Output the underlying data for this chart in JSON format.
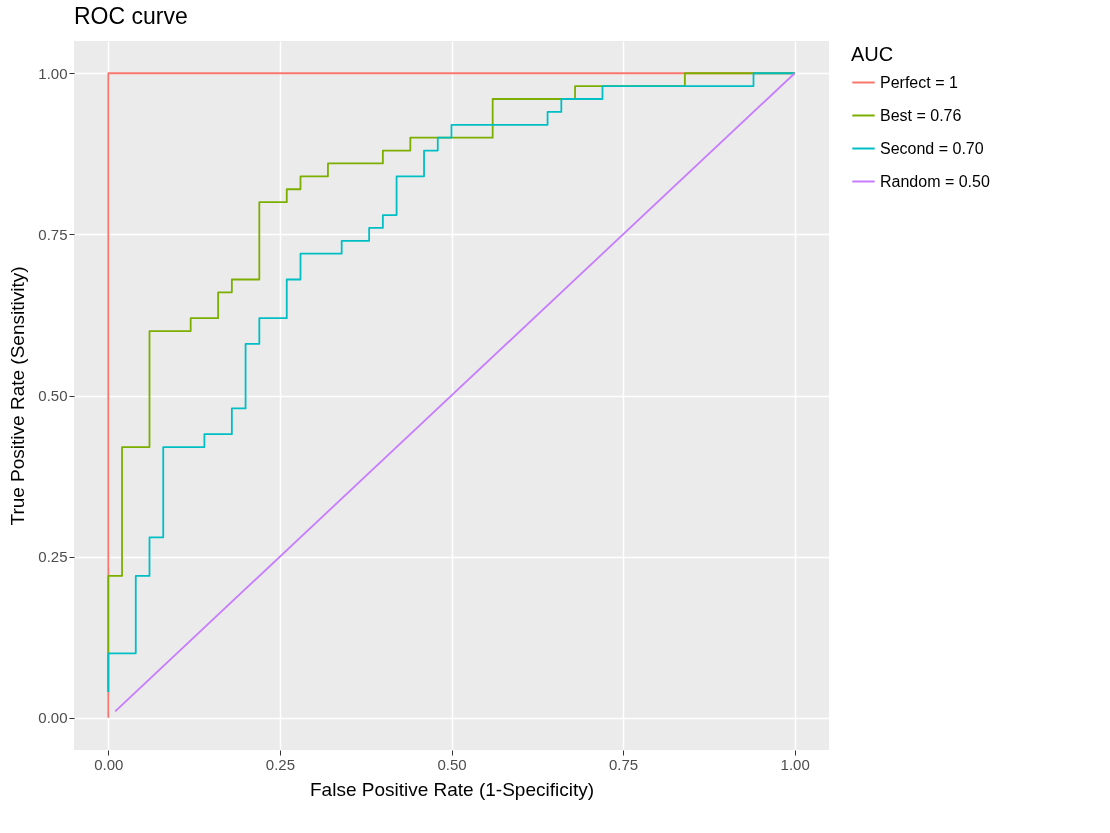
{
  "chart_data": {
    "type": "step",
    "title": "ROC curve",
    "xlabel": "False Positive Rate (1-Specificity)",
    "ylabel": "True Positive Rate (Sensitivity)",
    "legend_title": "AUC",
    "xlim": [
      -0.05,
      1.05
    ],
    "ylim": [
      -0.05,
      1.05
    ],
    "xticks": [
      {
        "value": 0,
        "label": "0.00"
      },
      0.25,
      {
        "value": 0.5,
        "label": "0.50"
      },
      0.75,
      {
        "value": 1,
        "label": "1.00"
      }
    ],
    "yticks": [
      {
        "value": 0,
        "label": "0.00"
      },
      0.25,
      {
        "value": 0.5,
        "label": "0.50"
      },
      0.75,
      {
        "value": 1,
        "label": "1.00"
      }
    ],
    "grid": true,
    "legend": "right",
    "series": [
      {
        "name": "Perfect = 1",
        "color": "#f8766d",
        "x": [
          0,
          0,
          1
        ],
        "values": [
          0,
          1,
          1
        ]
      },
      {
        "name": "Best = 0.76",
        "color": "#7cae00",
        "x": [
          0,
          0,
          0.02,
          0.06,
          0.12,
          0.16,
          0.18,
          0.22,
          0.26,
          0.28,
          0.32,
          0.4,
          0.44,
          0.56,
          0.68,
          0.84,
          1
        ],
        "values": [
          0.04,
          0.22,
          0.42,
          0.6,
          0.62,
          0.66,
          0.68,
          0.8,
          0.82,
          0.84,
          0.86,
          0.88,
          0.9,
          0.96,
          0.98,
          1,
          1
        ]
      },
      {
        "name": "Second = 0.70",
        "color": "#00bfc4",
        "x": [
          0,
          0,
          0.04,
          0.06,
          0.08,
          0.14,
          0.18,
          0.2,
          0.22,
          0.26,
          0.28,
          0.34,
          0.38,
          0.4,
          0.42,
          0.46,
          0.48,
          0.5,
          0.64,
          0.66,
          0.72,
          0.94,
          1
        ],
        "values": [
          0.04,
          0.1,
          0.22,
          0.28,
          0.42,
          0.44,
          0.48,
          0.58,
          0.62,
          0.68,
          0.72,
          0.74,
          0.76,
          0.78,
          0.84,
          0.88,
          0.9,
          0.92,
          0.94,
          0.96,
          0.98,
          1,
          1
        ]
      },
      {
        "name": "Random = 0.50",
        "color": "#c77cff",
        "type": "line",
        "x": [
          0.01,
          1
        ],
        "values": [
          0.01,
          1
        ]
      }
    ]
  }
}
